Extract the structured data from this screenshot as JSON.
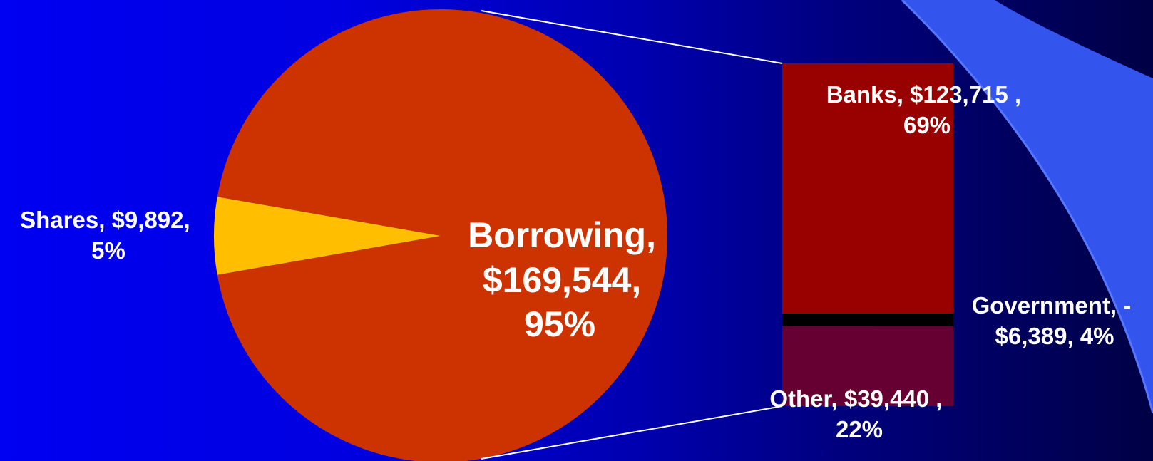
{
  "chart_data": {
    "type": "pie",
    "subtype": "pie-of-bar",
    "currency_unit": "$",
    "colors": {
      "Borrowing": "#cc3300",
      "Shares": "#ffbf00",
      "Banks": "#990000",
      "Government": "#000000",
      "Other": "#660033",
      "leader_line": "#ffffff",
      "label": "#ffffff"
    },
    "pie": {
      "slices": [
        {
          "name": "Borrowing",
          "value": 169544,
          "percent": 95,
          "label_lines": [
            "Borrowing,",
            "$169,544,",
            "95%"
          ]
        },
        {
          "name": "Shares",
          "value": 9892,
          "percent": 5,
          "label_lines": [
            "Shares,  $9,892,",
            "5%"
          ]
        }
      ]
    },
    "bar_breakdown_of": "Borrowing",
    "bar": {
      "segments": [
        {
          "name": "Banks",
          "value": 123715,
          "percent": 69,
          "label_lines": [
            "Banks,  $123,715 ,",
            "69%"
          ]
        },
        {
          "name": "Government",
          "value": -6389,
          "percent": 4,
          "label_lines": [
            "Government, -",
            "$6,389, 4%"
          ]
        },
        {
          "name": "Other",
          "value": 39440,
          "percent": 22,
          "label_lines": [
            "Other,  $39,440 ,",
            "22%"
          ]
        }
      ]
    }
  }
}
